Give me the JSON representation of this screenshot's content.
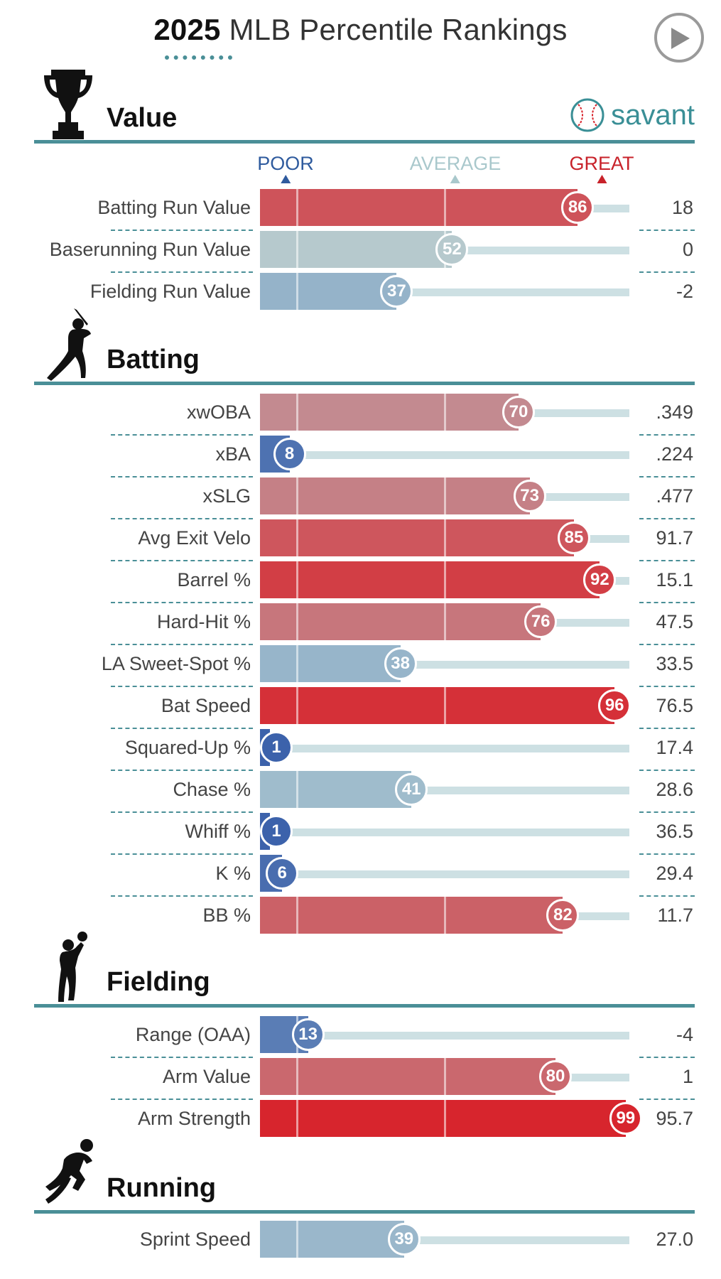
{
  "header": {
    "year": "2025",
    "title": "MLB Percentile Rankings",
    "play_icon": "play-icon"
  },
  "brand": {
    "name": "savant",
    "icon": "baseball-icon"
  },
  "scale": {
    "poor": "POOR",
    "average": "AVERAGE",
    "great": "GREAT"
  },
  "sections": [
    {
      "title": "Value",
      "icon": "trophy-icon"
    },
    {
      "title": "Batting",
      "icon": "batter-silhouette-icon"
    },
    {
      "title": "Fielding",
      "icon": "fielder-silhouette-icon"
    },
    {
      "title": "Running",
      "icon": "runner-silhouette-icon"
    }
  ],
  "chart_data": {
    "type": "bar",
    "title": "2025 MLB Percentile Rankings",
    "xlim": [
      0,
      100
    ],
    "groups": [
      {
        "section": "Value",
        "metrics": [
          {
            "label": "Batting Run Value",
            "percentile": 86,
            "value": "18"
          },
          {
            "label": "Baserunning Run Value",
            "percentile": 52,
            "value": "0"
          },
          {
            "label": "Fielding Run Value",
            "percentile": 37,
            "value": "-2"
          }
        ]
      },
      {
        "section": "Batting",
        "metrics": [
          {
            "label": "xwOBA",
            "percentile": 70,
            "value": ".349"
          },
          {
            "label": "xBA",
            "percentile": 8,
            "value": ".224"
          },
          {
            "label": "xSLG",
            "percentile": 73,
            "value": ".477"
          },
          {
            "label": "Avg Exit Velo",
            "percentile": 85,
            "value": "91.7"
          },
          {
            "label": "Barrel %",
            "percentile": 92,
            "value": "15.1"
          },
          {
            "label": "Hard-Hit %",
            "percentile": 76,
            "value": "47.5"
          },
          {
            "label": "LA Sweet-Spot %",
            "percentile": 38,
            "value": "33.5"
          },
          {
            "label": "Bat Speed",
            "percentile": 96,
            "value": "76.5"
          },
          {
            "label": "Squared-Up %",
            "percentile": 1,
            "value": "17.4"
          },
          {
            "label": "Chase %",
            "percentile": 41,
            "value": "28.6"
          },
          {
            "label": "Whiff %",
            "percentile": 1,
            "value": "36.5"
          },
          {
            "label": "K %",
            "percentile": 6,
            "value": "29.4"
          },
          {
            "label": "BB %",
            "percentile": 82,
            "value": "11.7"
          }
        ]
      },
      {
        "section": "Fielding",
        "metrics": [
          {
            "label": "Range (OAA)",
            "percentile": 13,
            "value": "-4"
          },
          {
            "label": "Arm Value",
            "percentile": 80,
            "value": "1"
          },
          {
            "label": "Arm Strength",
            "percentile": 99,
            "value": "95.7"
          }
        ]
      },
      {
        "section": "Running",
        "metrics": [
          {
            "label": "Sprint Speed",
            "percentile": 39,
            "value": "27.0"
          }
        ]
      }
    ],
    "colors": {
      "poor": "#3a60aa",
      "average": "#b5d0d4",
      "great": "#d8222a"
    }
  }
}
